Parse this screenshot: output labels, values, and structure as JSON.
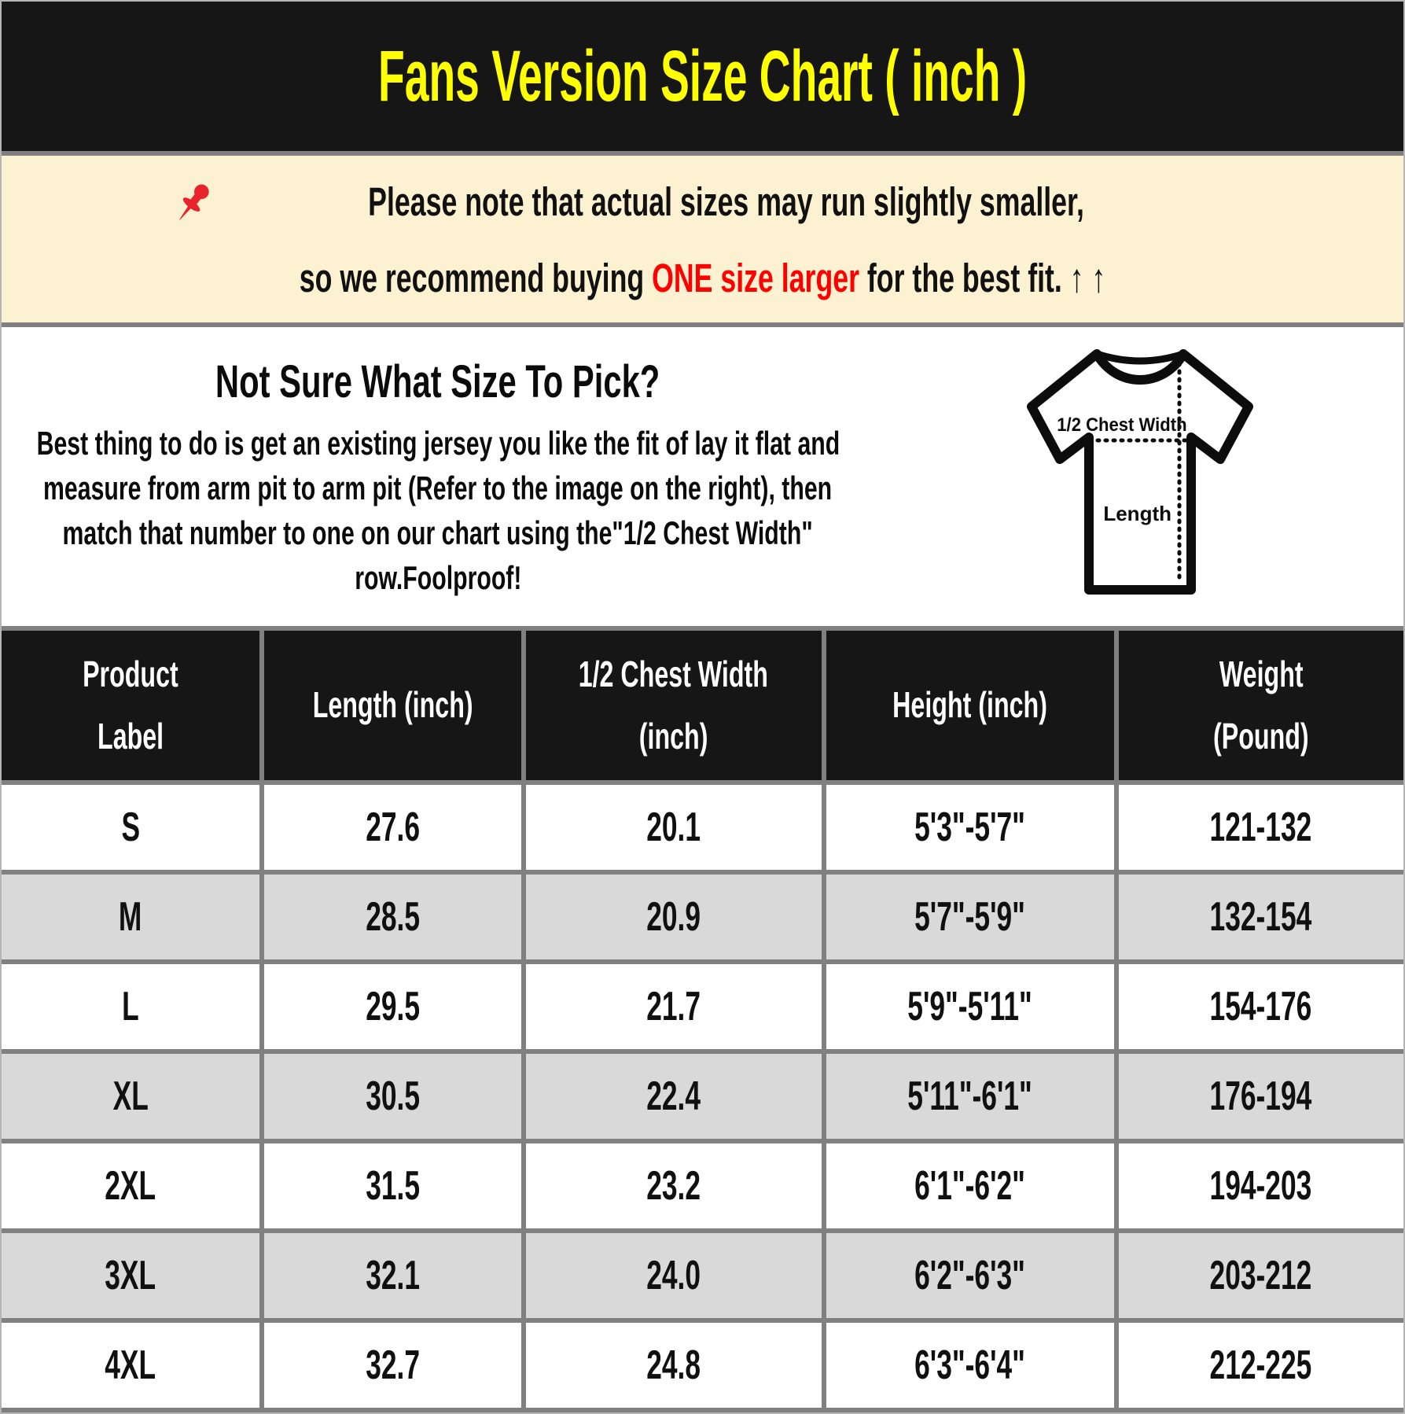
{
  "header": {
    "title": "Fans Version Size Chart ( inch )",
    "background": "#161616",
    "title_color": "#ffff00"
  },
  "notice": {
    "background": "#fcf2d2",
    "pushpin_icon": "pushpin-icon",
    "line1": "Please note that actual sizes may run slightly smaller,",
    "line2": {
      "pre": "so we recommend buying ",
      "highlight": "ONE size larger",
      "highlight_color": "#ff0000",
      "post": " for the best fit. ↑ ↑"
    }
  },
  "guide": {
    "heading": "Not Sure What Size To Pick?",
    "body_lines": [
      "Best thing to do is get an existing jersey you like the fit of lay it flat and",
      "measure from arm pit to arm pit (Refer to the image on the right), then",
      "match that number to one on our chart using the\"1/2 Chest Width\"",
      "row.Foolproof!"
    ],
    "diagram": {
      "chest_label": "1/2 Chest Width",
      "length_label": "Length"
    }
  },
  "size_table": {
    "header_bg": "#161616",
    "header_text_color": "#ffffff",
    "row_alt_bg": "#d9d9d9",
    "divider_color": "#808080",
    "columns": [
      {
        "lines": [
          "Product",
          "Label"
        ]
      },
      {
        "lines": [
          "Length (inch)"
        ]
      },
      {
        "lines": [
          "1/2 Chest Width",
          "(inch)"
        ]
      },
      {
        "lines": [
          "Height (inch)"
        ]
      },
      {
        "lines": [
          "Weight",
          "(Pound)"
        ]
      }
    ],
    "rows": [
      {
        "cells": [
          "S",
          "27.6",
          "20.1",
          "5'3\"-5'7\"",
          "121-132"
        ]
      },
      {
        "cells": [
          "M",
          "28.5",
          "20.9",
          "5'7\"-5'9\"",
          "132-154"
        ]
      },
      {
        "cells": [
          "L",
          "29.5",
          "21.7",
          "5'9\"-5'11\"",
          "154-176"
        ]
      },
      {
        "cells": [
          "XL",
          "30.5",
          "22.4",
          "5'11\"-6'1\"",
          "176-194"
        ]
      },
      {
        "cells": [
          "2XL",
          "31.5",
          "23.2",
          "6'1\"-6'2\"",
          "194-203"
        ]
      },
      {
        "cells": [
          "3XL",
          "32.1",
          "24.0",
          "6'2\"-6'3\"",
          "203-212"
        ]
      },
      {
        "cells": [
          "4XL",
          "32.7",
          "24.8",
          "6'3\"-6'4\"",
          "212-225"
        ]
      }
    ]
  }
}
